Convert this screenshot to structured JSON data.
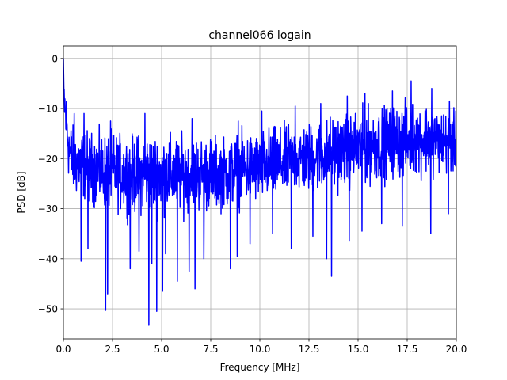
{
  "chart_data": {
    "type": "line",
    "title": "channel066 logain",
    "xlabel": "Frequency [MHz]",
    "ylabel": "PSD [dB]",
    "xlim": [
      0,
      20
    ],
    "ylim": [
      -56,
      2.5
    ],
    "xticks": [
      0,
      2.5,
      5,
      7.5,
      10,
      12.5,
      15,
      17.5,
      20
    ],
    "xtick_labels": [
      "0.0",
      "2.5",
      "5.0",
      "7.5",
      "10.0",
      "12.5",
      "15.0",
      "17.5",
      "20.0"
    ],
    "yticks": [
      0,
      -10,
      -20,
      -30,
      -40,
      -50
    ],
    "ytick_labels": [
      "0",
      "−10",
      "−20",
      "−30",
      "−40",
      "−50"
    ],
    "grid": true,
    "series": [
      {
        "color": "#0000ff",
        "x": [
          0.0,
          0.1,
          0.3,
          0.5,
          1.0,
          1.5,
          2.0,
          2.5,
          3.0,
          3.5,
          4.0,
          4.5,
          5.0,
          5.5,
          6.0,
          6.5,
          7.0,
          7.5,
          8.0,
          8.5,
          9.0,
          9.5,
          10.0,
          10.5,
          11.0,
          11.5,
          12.0,
          12.5,
          13.0,
          13.5,
          14.0,
          14.5,
          15.0,
          15.5,
          16.0,
          16.5,
          17.0,
          17.5,
          18.0,
          18.5,
          19.0,
          19.5,
          20.0
        ],
        "upper": [
          0.0,
          -2.0,
          -9.0,
          -11.0,
          -11.5,
          -12.0,
          -12.0,
          -12.0,
          -12.5,
          -12.5,
          -12.0,
          -12.0,
          -12.0,
          -12.5,
          -12.5,
          -12.5,
          -12.5,
          -12.5,
          -13.0,
          -12.5,
          -12.0,
          -12.0,
          -11.5,
          -11.0,
          -11.0,
          -10.5,
          -10.0,
          -10.0,
          -9.5,
          -9.0,
          -8.0,
          -8.5,
          -7.5,
          -7.0,
          -7.0,
          -6.5,
          -6.5,
          -6.0,
          -6.0,
          -6.0,
          -7.0,
          -8.0,
          -8.5
        ],
        "lower": [
          -13.0,
          -20.0,
          -28.0,
          -30.0,
          -31.0,
          -32.0,
          -33.0,
          -33.0,
          -33.5,
          -34.0,
          -34.0,
          -34.0,
          -34.0,
          -34.0,
          -34.0,
          -34.0,
          -33.5,
          -33.5,
          -33.0,
          -33.0,
          -32.5,
          -32.0,
          -32.0,
          -31.5,
          -31.0,
          -30.5,
          -30.0,
          -30.0,
          -29.5,
          -29.0,
          -29.0,
          -28.5,
          -28.0,
          -28.0,
          -27.5,
          -27.0,
          -26.5,
          -26.5,
          -26.0,
          -26.0,
          -25.5,
          -25.5,
          -25.5
        ],
        "spikes_down": [
          [
            0.9,
            -40.5
          ],
          [
            1.25,
            -38.0
          ],
          [
            2.15,
            -50.3
          ],
          [
            2.25,
            -47.0
          ],
          [
            3.4,
            -42.0
          ],
          [
            3.85,
            -38.5
          ],
          [
            4.35,
            -53.3
          ],
          [
            4.5,
            -41.0
          ],
          [
            4.75,
            -50.5
          ],
          [
            5.05,
            -46.5
          ],
          [
            5.2,
            -39.0
          ],
          [
            5.8,
            -44.5
          ],
          [
            6.4,
            -42.5
          ],
          [
            6.7,
            -46.0
          ],
          [
            7.15,
            -40.0
          ],
          [
            8.5,
            -42.0
          ],
          [
            8.85,
            -39.5
          ],
          [
            9.5,
            -37.0
          ],
          [
            10.65,
            -35.0
          ],
          [
            11.6,
            -38.0
          ],
          [
            12.7,
            -35.5
          ],
          [
            13.4,
            -40.0
          ],
          [
            13.65,
            -43.5
          ],
          [
            14.55,
            -36.5
          ],
          [
            15.2,
            -34.5
          ],
          [
            16.2,
            -33.0
          ],
          [
            17.25,
            -33.5
          ],
          [
            18.7,
            -35.0
          ],
          [
            19.6,
            -31.0
          ]
        ],
        "spikes_up": [
          [
            0.55,
            -11.0
          ],
          [
            1.05,
            -11.0
          ],
          [
            2.4,
            -12.5
          ],
          [
            4.15,
            -11.0
          ],
          [
            6.55,
            -12.0
          ],
          [
            8.9,
            -12.5
          ],
          [
            10.1,
            -10.5
          ],
          [
            11.8,
            -9.5
          ],
          [
            13.1,
            -9.0
          ],
          [
            14.45,
            -7.5
          ],
          [
            15.35,
            -7.0
          ],
          [
            16.75,
            -6.5
          ],
          [
            17.7,
            -4.5
          ],
          [
            18.75,
            -6.0
          ],
          [
            19.65,
            -8.5
          ]
        ]
      }
    ]
  }
}
